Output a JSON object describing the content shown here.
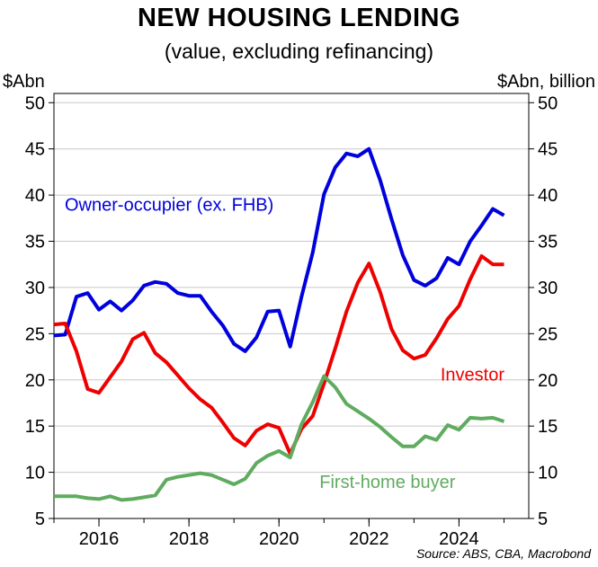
{
  "chart_data": {
    "type": "line",
    "title": "NEW HOUSING LENDING",
    "subtitle": "(value, excluding refinancing)",
    "ylabel_left": "$Abn",
    "ylabel_right": "$Abn, billion",
    "source": "Source: ABS, CBA, Macrobond",
    "ylim": [
      5,
      51
    ],
    "y_ticks": [
      5,
      10,
      15,
      20,
      25,
      30,
      35,
      40,
      45,
      50
    ],
    "x_ticks": [
      2016,
      2018,
      2020,
      2022,
      2024
    ],
    "grid": true,
    "series": [
      {
        "name": "Owner-occupier (ex. FHB)",
        "color": "#0000dd",
        "x": [
          2015.0,
          2015.25,
          2015.5,
          2015.75,
          2016.0,
          2016.25,
          2016.5,
          2016.75,
          2017.0,
          2017.25,
          2017.5,
          2017.75,
          2018.0,
          2018.25,
          2018.5,
          2018.75,
          2019.0,
          2019.25,
          2019.5,
          2019.75,
          2020.0,
          2020.25,
          2020.5,
          2020.75,
          2021.0,
          2021.25,
          2021.5,
          2021.75,
          2022.0,
          2022.25,
          2022.5,
          2022.75,
          2023.0,
          2023.25,
          2023.5,
          2023.75,
          2024.0,
          2024.25,
          2024.5,
          2024.75,
          2025.0
        ],
        "values": [
          24.8,
          24.9,
          29.0,
          29.4,
          27.6,
          28.5,
          27.5,
          28.6,
          30.2,
          30.6,
          30.4,
          29.4,
          29.1,
          29.1,
          27.4,
          25.9,
          23.9,
          23.1,
          24.6,
          27.4,
          27.5,
          23.6,
          29.0,
          33.8,
          40.1,
          43.0,
          44.5,
          44.2,
          45.0,
          41.6,
          37.4,
          33.5,
          30.8,
          30.2,
          31.0,
          33.2,
          32.5,
          35.0,
          36.7,
          38.5,
          37.8
        ]
      },
      {
        "name": "Investor",
        "color": "#ee0000",
        "x": [
          2015.0,
          2015.25,
          2015.5,
          2015.75,
          2016.0,
          2016.25,
          2016.5,
          2016.75,
          2017.0,
          2017.25,
          2017.5,
          2017.75,
          2018.0,
          2018.25,
          2018.5,
          2018.75,
          2019.0,
          2019.25,
          2019.5,
          2019.75,
          2020.0,
          2020.25,
          2020.5,
          2020.75,
          2021.0,
          2021.25,
          2021.5,
          2021.75,
          2022.0,
          2022.25,
          2022.5,
          2022.75,
          2023.0,
          2023.25,
          2023.5,
          2023.75,
          2024.0,
          2024.25,
          2024.5,
          2024.75,
          2025.0
        ],
        "values": [
          26.0,
          26.1,
          23.1,
          19.0,
          18.6,
          20.3,
          22.0,
          24.4,
          25.1,
          22.9,
          21.9,
          20.5,
          19.1,
          17.9,
          17.0,
          15.4,
          13.7,
          12.9,
          14.5,
          15.2,
          14.8,
          12.0,
          14.7,
          16.1,
          19.6,
          23.4,
          27.4,
          30.5,
          32.6,
          29.5,
          25.5,
          23.2,
          22.3,
          22.7,
          24.5,
          26.6,
          28.0,
          30.9,
          33.4,
          32.5,
          32.5
        ]
      },
      {
        "name": "First-home buyer",
        "color": "#5fab5f",
        "x": [
          2015.0,
          2015.25,
          2015.5,
          2015.75,
          2016.0,
          2016.25,
          2016.5,
          2016.75,
          2017.0,
          2017.25,
          2017.5,
          2017.75,
          2018.0,
          2018.25,
          2018.5,
          2018.75,
          2019.0,
          2019.25,
          2019.5,
          2019.75,
          2020.0,
          2020.25,
          2020.5,
          2020.75,
          2021.0,
          2021.25,
          2021.5,
          2021.75,
          2022.0,
          2022.25,
          2022.5,
          2022.75,
          2023.0,
          2023.25,
          2023.5,
          2023.75,
          2024.0,
          2024.25,
          2024.5,
          2024.75,
          2025.0
        ],
        "values": [
          7.4,
          7.4,
          7.4,
          7.2,
          7.1,
          7.4,
          7.0,
          7.1,
          7.3,
          7.5,
          9.2,
          9.5,
          9.7,
          9.9,
          9.7,
          9.2,
          8.7,
          9.3,
          11.0,
          11.8,
          12.3,
          11.6,
          15.2,
          17.6,
          20.4,
          19.2,
          17.4,
          16.6,
          15.8,
          14.9,
          13.8,
          12.8,
          12.8,
          13.9,
          13.5,
          15.1,
          14.6,
          15.9,
          15.8,
          15.9,
          15.5
        ]
      }
    ],
    "annotations": [
      {
        "text": "Owner-occupier (ex. FHB)",
        "x": 2016.4,
        "y": 39.0,
        "color": "#0000dd"
      },
      {
        "text": "Investor",
        "x": 2024.3,
        "y": 20.6,
        "color": "#ee0000"
      },
      {
        "text": "First-home buyer",
        "x": 2020.9,
        "y": 9.0,
        "color": "#5fab5f"
      }
    ]
  }
}
